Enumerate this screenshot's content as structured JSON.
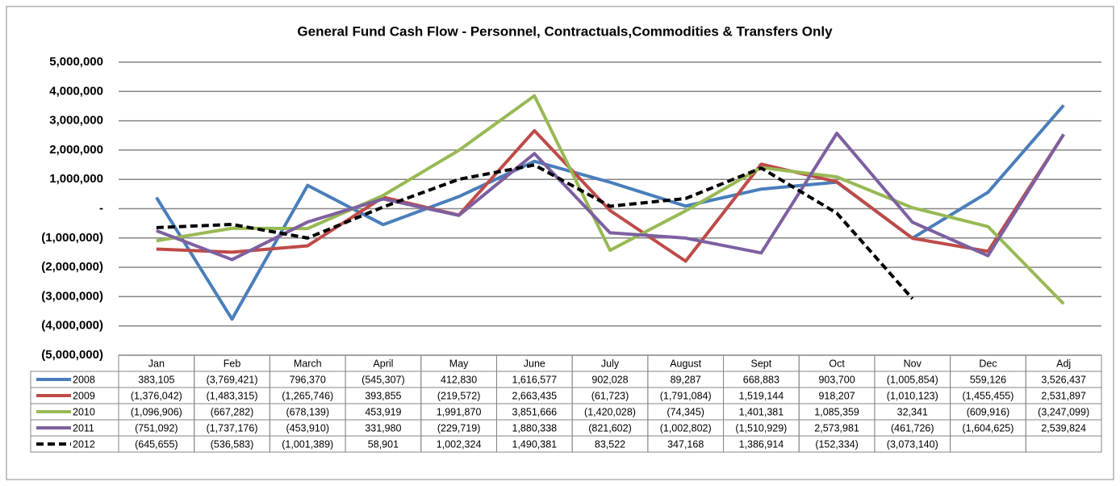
{
  "chart_data": {
    "type": "line",
    "title": "General Fund Cash Flow - Personnel, Contractuals,Commodities  & Transfers Only",
    "categories": [
      "Jan",
      "Feb",
      "March",
      "April",
      "May",
      "June",
      "July",
      "August",
      "Sept",
      "Oct",
      "Nov",
      "Dec",
      "Adj"
    ],
    "ylim": [
      -5000000,
      5000000
    ],
    "yticks": [
      {
        "value": -5000000,
        "label": "(5,000,000)"
      },
      {
        "value": -4000000,
        "label": "(4,000,000)"
      },
      {
        "value": -3000000,
        "label": "(3,000,000)"
      },
      {
        "value": -2000000,
        "label": "(2,000,000)"
      },
      {
        "value": -1000000,
        "label": "(1,000,000)"
      },
      {
        "value": 0,
        "label": "-"
      },
      {
        "value": 1000000,
        "label": "1,000,000"
      },
      {
        "value": 2000000,
        "label": "2,000,000"
      },
      {
        "value": 3000000,
        "label": "3,000,000"
      },
      {
        "value": 4000000,
        "label": "4,000,000"
      },
      {
        "value": 5000000,
        "label": "5,000,000"
      }
    ],
    "grid": true,
    "series": [
      {
        "name": "2008",
        "color": "#4a7ebb",
        "values": [
          383105,
          -3769421,
          796370,
          -545307,
          412830,
          1616577,
          902028,
          89287,
          668883,
          903700,
          -1005854,
          559126,
          3526437
        ],
        "value_labels": [
          "383,105",
          "(3,769,421)",
          "796,370",
          "(545,307)",
          "412,830",
          "1,616,577",
          "902,028",
          "89,287",
          "668,883",
          "903,700",
          "(1,005,854)",
          "559,126",
          "3,526,437"
        ]
      },
      {
        "name": "2009",
        "color": "#be4b48",
        "values": [
          -1376042,
          -1483315,
          -1265746,
          393855,
          -219572,
          2663435,
          -61723,
          -1791084,
          1519144,
          918207,
          -1010123,
          -1455455,
          2531897
        ],
        "value_labels": [
          "(1,376,042)",
          "(1,483,315)",
          "(1,265,746)",
          "393,855",
          "(219,572)",
          "2,663,435",
          "(61,723)",
          "(1,791,084)",
          "1,519,144",
          "918,207",
          "(1,010,123)",
          "(1,455,455)",
          "2,531,897"
        ]
      },
      {
        "name": "2010",
        "color": "#98b954",
        "values": [
          -1096906,
          -667282,
          -678139,
          453919,
          1991870,
          3851666,
          -1420028,
          -74345,
          1401381,
          1085359,
          32341,
          -609916,
          -3247099
        ],
        "value_labels": [
          "(1,096,906)",
          "(667,282)",
          "(678,139)",
          "453,919",
          "1,991,870",
          "3,851,666",
          "(1,420,028)",
          "(74,345)",
          "1,401,381",
          "1,085,359",
          "32,341",
          "(609,916)",
          "(3,247,099)"
        ]
      },
      {
        "name": "2011",
        "color": "#7d60a0",
        "values": [
          -751092,
          -1737176,
          -453910,
          331980,
          -229719,
          1880338,
          -821602,
          -1002802,
          -1510929,
          2573981,
          -461726,
          -1604625,
          2539824
        ],
        "value_labels": [
          "(751,092)",
          "(1,737,176)",
          "(453,910)",
          "331,980",
          "(229,719)",
          "1,880,338",
          "(821,602)",
          "(1,002,802)",
          "(1,510,929)",
          "2,573,981",
          "(461,726)",
          "(1,604,625)",
          "2,539,824"
        ]
      },
      {
        "name": "2012",
        "color": "#000000",
        "dashed": true,
        "values": [
          -645655,
          -536583,
          -1001389,
          58901,
          1002324,
          1490381,
          83522,
          347168,
          1386914,
          -152334,
          -3073140,
          null,
          null
        ],
        "value_labels": [
          "(645,655)",
          "(536,583)",
          "(1,001,389)",
          "58,901",
          "1,002,324",
          "1,490,381",
          "83,522",
          "347,168",
          "1,386,914",
          "(152,334)",
          "(3,073,140)",
          null,
          null
        ]
      }
    ]
  }
}
